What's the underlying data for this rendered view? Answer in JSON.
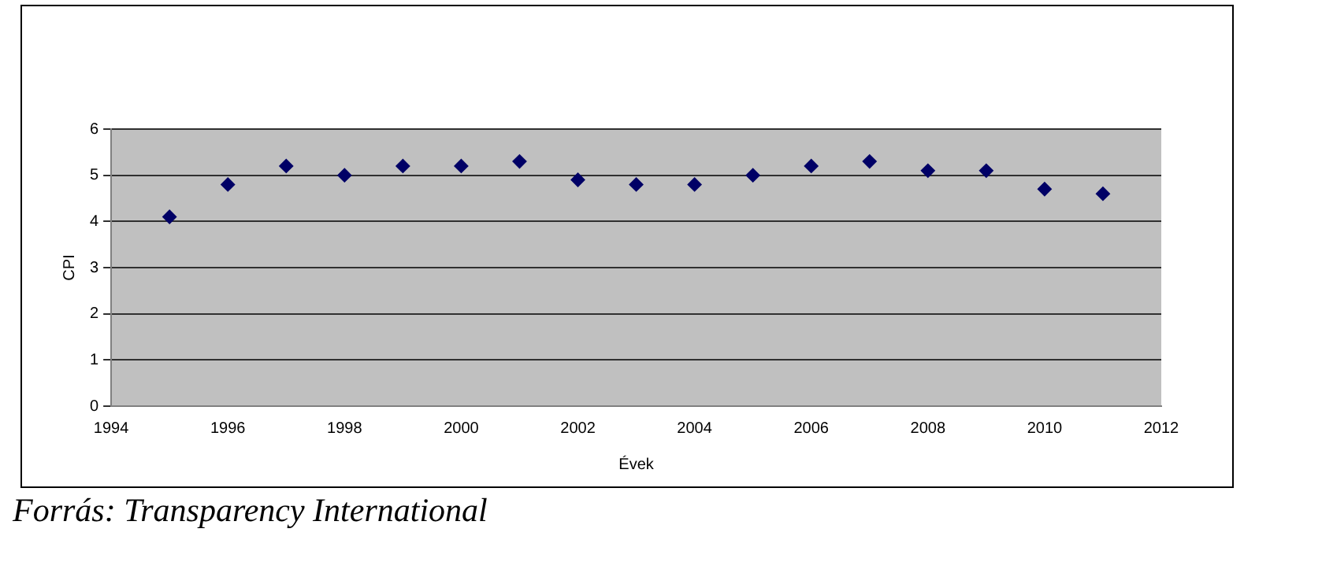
{
  "chart_data": {
    "type": "scatter",
    "xlabel": "Évek",
    "ylabel": "CPI",
    "x": [
      1995,
      1996,
      1997,
      1998,
      1999,
      2000,
      2001,
      2002,
      2003,
      2004,
      2005,
      2006,
      2007,
      2008,
      2009,
      2010,
      2011
    ],
    "series": [
      {
        "color": "#000066",
        "values": [
          4.1,
          4.8,
          5.2,
          5.0,
          5.2,
          5.2,
          5.3,
          4.9,
          4.8,
          4.8,
          5.0,
          5.2,
          5.3,
          5.1,
          5.1,
          4.7,
          4.6
        ]
      }
    ],
    "xlim": [
      1994,
      2012
    ],
    "xticks": [
      1994,
      1996,
      1998,
      2000,
      2002,
      2004,
      2006,
      2008,
      2010,
      2012
    ],
    "ylim": [
      0,
      6
    ],
    "yticks": [
      0,
      1,
      2,
      3,
      4,
      5,
      6
    ],
    "grid": "y",
    "legend": false,
    "marker": "diamond",
    "annotations": [
      "Forrás: Transparency International"
    ]
  }
}
